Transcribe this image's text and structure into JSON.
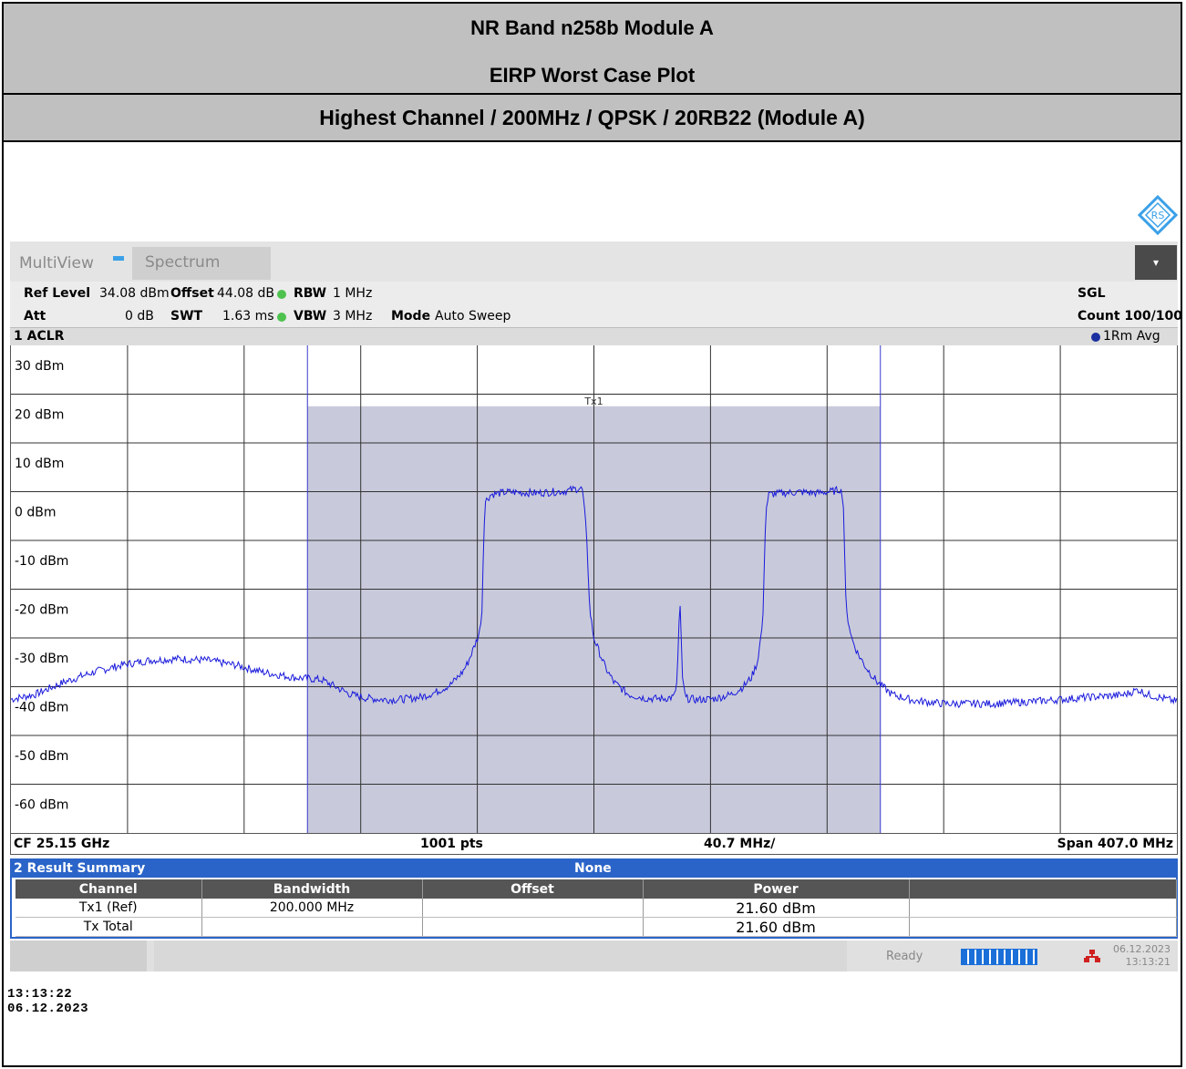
{
  "header": {
    "line1": "NR Band n258b Module A",
    "line2": "EIRP Worst Case Plot",
    "line3": "Highest Channel / 200MHz / QPSK / 20RB22 (Module A)"
  },
  "tabs": {
    "multiview": "MultiView",
    "spectrum": "Spectrum",
    "dropdown_glyph": "▾"
  },
  "settings": {
    "ref_level_label": "Ref Level",
    "ref_level": "34.08 dBm",
    "offset_label": "Offset",
    "offset": "44.08 dB",
    "rbw_label": "RBW",
    "rbw": "1 MHz",
    "att_label": "Att",
    "att": "0 dB",
    "swt_label": "SWT",
    "swt": "1.63 ms",
    "vbw_label": "VBW",
    "vbw": "3 MHz",
    "mode_label": "Mode",
    "mode": "Auto Sweep",
    "sgl": "SGL",
    "count": "Count 100/100"
  },
  "window": {
    "title": "1 ACLR",
    "trace_label": "1Rm Avg"
  },
  "chart_data": {
    "type": "line",
    "ylabels": [
      "30 dBm",
      "20 dBm",
      "10 dBm",
      "0 dBm",
      "-10 dBm",
      "-20 dBm",
      "-30 dBm",
      "-40 dBm",
      "-50 dBm",
      "-60 dBm"
    ],
    "y_top": 34.08,
    "y_bottom": -65.92,
    "x_center_ghz": 25.15,
    "span_mhz": 407.0,
    "channel_label": "Tx1",
    "channel_bw_mhz": 200.0,
    "channel_power_dbm": 21.6,
    "trace_color": "#1a1adc",
    "channel_fill": "#c8cadb",
    "series": [
      {
        "points": [
          [
            -203.5,
            -38.5
          ],
          [
            -195,
            -37.5
          ],
          [
            -185,
            -35
          ],
          [
            -175,
            -33
          ],
          [
            -165,
            -31.5
          ],
          [
            -155,
            -30.5
          ],
          [
            -145,
            -30.2
          ],
          [
            -135,
            -30.5
          ],
          [
            -125,
            -31.5
          ],
          [
            -115,
            -33
          ],
          [
            -105,
            -34
          ],
          [
            -95,
            -34.5
          ],
          [
            -90,
            -36
          ],
          [
            -85,
            -37.5
          ],
          [
            -80,
            -38.2
          ],
          [
            -75,
            -38.5
          ],
          [
            -70,
            -38.6
          ],
          [
            -65,
            -38.4
          ],
          [
            -60,
            -38
          ],
          [
            -55,
            -37
          ],
          [
            -50,
            -35.5
          ],
          [
            -46,
            -33
          ],
          [
            -44,
            -31
          ],
          [
            -42,
            -28
          ],
          [
            -40,
            -25
          ],
          [
            -39,
            -20
          ],
          [
            -38.5,
            -5
          ],
          [
            -38,
            2
          ],
          [
            -36,
            3.5
          ],
          [
            -30,
            4
          ],
          [
            -20,
            3.8
          ],
          [
            -10,
            4.2
          ],
          [
            -5,
            4.8
          ],
          [
            -4,
            4.5
          ],
          [
            -2.5,
            -5
          ],
          [
            -1.5,
            -20
          ],
          [
            0,
            -26
          ],
          [
            2,
            -29
          ],
          [
            4,
            -32
          ],
          [
            7,
            -35
          ],
          [
            12,
            -37.5
          ],
          [
            18,
            -38.3
          ],
          [
            24,
            -38.4
          ],
          [
            28,
            -38
          ],
          [
            29,
            -35
          ],
          [
            30,
            -18
          ],
          [
            31,
            -35
          ],
          [
            32,
            -38.3
          ],
          [
            36,
            -38.6
          ],
          [
            42,
            -38.4
          ],
          [
            48,
            -37.5
          ],
          [
            52,
            -36
          ],
          [
            55,
            -34
          ],
          [
            57,
            -31
          ],
          [
            58,
            -27
          ],
          [
            59,
            -22
          ],
          [
            59.5,
            -10
          ],
          [
            60,
            0
          ],
          [
            61,
            3.5
          ],
          [
            66,
            3.8
          ],
          [
            72,
            4
          ],
          [
            78,
            3.8
          ],
          [
            84,
            4.2
          ],
          [
            86,
            4.6
          ],
          [
            87,
            3
          ],
          [
            87.5,
            -8
          ],
          [
            88,
            -20
          ],
          [
            90,
            -26
          ],
          [
            92,
            -29
          ],
          [
            95,
            -32
          ],
          [
            99,
            -35
          ],
          [
            104,
            -37.5
          ],
          [
            112,
            -38.8
          ],
          [
            122,
            -39.4
          ],
          [
            140,
            -39.4
          ],
          [
            155,
            -38.9
          ],
          [
            170,
            -38.2
          ],
          [
            185,
            -37.6
          ],
          [
            190,
            -36.5
          ],
          [
            193,
            -37.5
          ],
          [
            203.5,
            -39
          ]
        ]
      }
    ]
  },
  "plot_footer": {
    "cf": "CF 25.15 GHz",
    "pts": "1001 pts",
    "div": "40.7 MHz/",
    "span": "Span 407.0 MHz"
  },
  "result_summary": {
    "title": "2 Result Summary",
    "center": "None",
    "columns": [
      "Channel",
      "Bandwidth",
      "Offset",
      "Power",
      ""
    ],
    "rows": [
      {
        "channel": "Tx1 (Ref)",
        "bandwidth": "200.000 MHz",
        "offset": "",
        "power": "21.60 dBm"
      },
      {
        "channel": "Tx Total",
        "bandwidth": "",
        "offset": "",
        "power": "21.60 dBm"
      }
    ]
  },
  "statusbar": {
    "ready": "Ready",
    "date": "06.12.2023",
    "time": "13:13:21",
    "progress": 1.0
  },
  "timestamp": "13:13:22  06.12.2023",
  "logo_text": "RS"
}
